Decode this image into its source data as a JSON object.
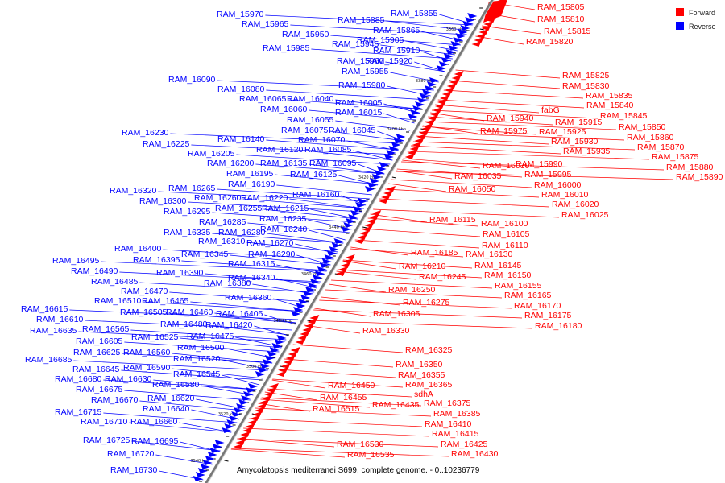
{
  "caption": "Amycolatopsis mediterranei S699, complete genome. - 0..10236779",
  "legend": [
    {
      "label": "Forward",
      "color": "#ff0000"
    },
    {
      "label": "Reverse",
      "color": "#0000ff"
    }
  ],
  "colors": {
    "forward": "#ff0000",
    "reverse": "#0000ff",
    "backbone": "#777777"
  },
  "ticks": [
    "3360 kbp",
    "3380 kbp",
    "3400 kbp",
    "3420 kbp",
    "3440 kbp",
    "3460 kbp",
    "3480 kbp",
    "3500 kbp",
    "3520 kbp",
    "3540 kbp"
  ],
  "forward_labels": [
    "RAM_15805",
    "RAM_15810",
    "RAM_15815",
    "RAM_15820",
    "RAM_15825",
    "RAM_15830",
    "RAM_15835",
    "RAM_15840",
    "RAM_15845",
    "RAM_15850",
    "RAM_15860",
    "RAM_15870",
    "RAM_15875",
    "RAM_15880",
    "RAM_15890",
    "fabG",
    "RAM_15940",
    "RAM_15915",
    "RAM_15925",
    "RAM_15930",
    "RAM_15935",
    "RAM_15975",
    "RAM_15990",
    "RAM_16030",
    "RAM_15995",
    "RAM_16035",
    "RAM_16000",
    "RAM_16050",
    "RAM_16010",
    "RAM_16020",
    "RAM_16025",
    "RAM_16115",
    "RAM_16100",
    "RAM_16105",
    "RAM_16110",
    "RAM_16185",
    "RAM_16130",
    "RAM_16210",
    "RAM_16145",
    "RAM_16245",
    "RAM_16150",
    "RAM_16250",
    "RAM_16155",
    "RAM_16165",
    "RAM_16275",
    "RAM_16170",
    "RAM_16305",
    "RAM_16175",
    "RAM_16180",
    "RAM_16330",
    "RAM_16325",
    "RAM_16350",
    "RAM_16355",
    "RAM_16365",
    "RAM_16450",
    "sdhA",
    "RAM_16455",
    "RAM_16375",
    "RAM_16435",
    "RAM_16385",
    "RAM_16515",
    "RAM_16410",
    "RAM_16415",
    "RAM_16425",
    "RAM_16530",
    "RAM_16430",
    "RAM_16535"
  ],
  "reverse_labels": [
    "RAM_15970",
    "RAM_15855",
    "RAM_15965",
    "RAM_15885",
    "RAM_15865",
    "RAM_15950",
    "RAM_15945",
    "RAM_15905",
    "RAM_15985",
    "RAM_15910",
    "RAM_15960",
    "RAM_15920",
    "RAM_15955",
    "RAM_16090",
    "RAM_15980",
    "RAM_16080",
    "RAM_16065",
    "RAM_16040",
    "RAM_16005",
    "RAM_16060",
    "RAM_16015",
    "RAM_16055",
    "RAM_16075",
    "RAM_16045",
    "RAM_16230",
    "RAM_16140",
    "RAM_16070",
    "RAM_16225",
    "RAM_16120",
    "RAM_16085",
    "RAM_16205",
    "RAM_16200",
    "RAM_16135",
    "RAM_16095",
    "RAM_16195",
    "RAM_16125",
    "RAM_16190",
    "RAM_16320",
    "RAM_16265",
    "RAM_16160",
    "RAM_16300",
    "RAM_16260",
    "RAM_16220",
    "RAM_16295",
    "RAM_16255",
    "RAM_16215",
    "RAM_16285",
    "RAM_16235",
    "RAM_16335",
    "RAM_16280",
    "RAM_16240",
    "RAM_16310",
    "RAM_16270",
    "RAM_16400",
    "RAM_16345",
    "RAM_16290",
    "RAM_16495",
    "RAM_16395",
    "RAM_16315",
    "RAM_16490",
    "RAM_16390",
    "RAM_16340",
    "RAM_16485",
    "RAM_16380",
    "RAM_16470",
    "RAM_16360",
    "RAM_16510",
    "RAM_16465",
    "RAM_16615",
    "RAM_16505",
    "RAM_16460",
    "RAM_16405",
    "RAM_16610",
    "RAM_16480",
    "RAM_16420",
    "RAM_16635",
    "RAM_16565",
    "RAM_16475",
    "RAM_16605",
    "RAM_16525",
    "RAM_16500",
    "RAM_16625",
    "RAM_16560",
    "RAM_16685",
    "RAM_16520",
    "RAM_16590",
    "RAM_16645",
    "RAM_16545",
    "RAM_16680",
    "RAM_16630",
    "RAM_16580",
    "RAM_16675",
    "RAM_16620",
    "RAM_16670",
    "RAM_16640",
    "RAM_16715",
    "RAM_16660",
    "RAM_16710",
    "RAM_16725",
    "RAM_16695",
    "RAM_16720",
    "RAM_16730"
  ]
}
